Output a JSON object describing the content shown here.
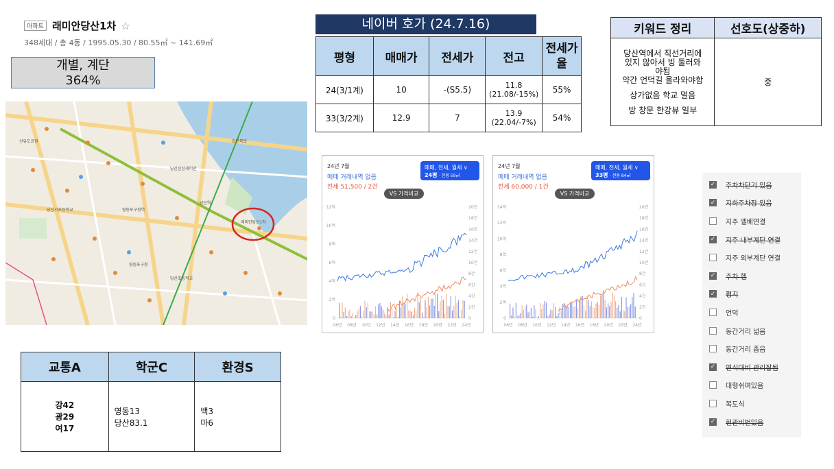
{
  "apartment": {
    "tag": "아파트",
    "name": "래미안당산1차",
    "star": "☆",
    "summary": "348세대 / 총 4동 / 1995.05.30 / 80.55㎡ ~ 141.69㎡"
  },
  "calc_box": {
    "line1": "개별, 계단",
    "line2": "364%"
  },
  "naver_quote": {
    "title": "네이버 호가 (24.7.16)",
    "headers": [
      "평형",
      "매매가",
      "전세가",
      "전고",
      "전세가율"
    ],
    "rows": [
      {
        "type": "24(3/1계)",
        "sale": "10",
        "jeonse": "-(S5.5)",
        "high_main": "11.8",
        "high_sub": "(21.08/-15%)",
        "rate": "55%"
      },
      {
        "type": "33(3/2계)",
        "sale": "12.9",
        "jeonse": "7",
        "high_main": "13.9",
        "high_sub": "(22.04/-7%)",
        "rate": "54%"
      }
    ]
  },
  "keywords": {
    "headers": [
      "키워드 정리",
      "선호도(상중하)"
    ],
    "lines": [
      "당산역에서 직선거리에",
      "있지 않아서 빙 둘러와",
      "야됨",
      "약간 언덕길 올라와야함",
      "상가없음 학교 멀음",
      "방 창문 한강뷰 일부"
    ],
    "preference": "중"
  },
  "charts": [
    {
      "date": "24년 7월",
      "trade": "매매 거래내역 없음",
      "rent": "전세 51,500 / 2건",
      "selector": "매매, 전세, 월세 ∨",
      "size": "24평",
      "size_sub": "· 전용 59㎡",
      "vs": "VS 가격비교",
      "y_left": [
        "12억",
        "10억",
        "8억",
        "6억",
        "4억",
        "2억",
        "0"
      ],
      "y_right": [
        "20건",
        "18건",
        "16건",
        "14건",
        "12건",
        "10건",
        "8건",
        "6건",
        "4건",
        "2건",
        "0"
      ],
      "x": [
        "06년",
        "08년",
        "10년",
        "12년",
        "14년",
        "16년",
        "18년",
        "20년",
        "22년",
        "24년"
      ]
    },
    {
      "date": "24년 7월",
      "trade": "매매 거래내역 없음",
      "rent": "전세 60,000 / 1건",
      "selector": "매매, 전세, 월세 ∨",
      "size": "33평",
      "size_sub": "· 전용 84㎡",
      "vs": "VS 가격비교",
      "y_left": [
        "14억",
        "12억",
        "10억",
        "8억",
        "6억",
        "4억",
        "2억",
        "0"
      ],
      "y_right": [
        "20건",
        "18건",
        "16건",
        "14건",
        "12건",
        "10건",
        "8건",
        "6건",
        "4건",
        "2건",
        "0"
      ],
      "x": [
        "06년",
        "08년",
        "10년",
        "12년",
        "14년",
        "16년",
        "18년",
        "20년",
        "22년",
        "24년"
      ]
    }
  ],
  "checklist": [
    {
      "label": "주차차단기 있음",
      "checked": true,
      "strike": true
    },
    {
      "label": "지하주차장 있음",
      "checked": true,
      "strike": true
    },
    {
      "label": "지주 엘베연결",
      "checked": false,
      "strike": false
    },
    {
      "label": "지주 내부계단 연결",
      "checked": true,
      "strike": true
    },
    {
      "label": "지주 외부계단 연결",
      "checked": false,
      "strike": false
    },
    {
      "label": "주차 헬",
      "checked": true,
      "strike": true
    },
    {
      "label": "평지",
      "checked": true,
      "strike": true
    },
    {
      "label": "언덕",
      "checked": false,
      "strike": false
    },
    {
      "label": "동간거리 넓음",
      "checked": false,
      "strike": false
    },
    {
      "label": "동간거리 좁음",
      "checked": false,
      "strike": false
    },
    {
      "label": "연식대비 관리잘됨",
      "checked": true,
      "strike": true
    },
    {
      "label": "대형쉬여있음",
      "checked": false,
      "strike": false
    },
    {
      "label": "복도식",
      "checked": false,
      "strike": false
    },
    {
      "label": "현관비번있음",
      "checked": true,
      "strike": true
    }
  ],
  "grades": {
    "headers": [
      "교통A",
      "학군C",
      "환경S"
    ],
    "transport": [
      "강42",
      "광29",
      "여17"
    ],
    "school": [
      "영동13",
      "당산83.1"
    ],
    "environment": [
      "백3",
      "마6"
    ]
  },
  "map": {
    "labels": [
      "당산역",
      "영등포구청역",
      "래미안당산1차",
      "당산삼성래미안",
      "당산서초등학교",
      "영등포구청",
      "당산초등학교",
      "강변북로",
      "선유도공원"
    ]
  }
}
